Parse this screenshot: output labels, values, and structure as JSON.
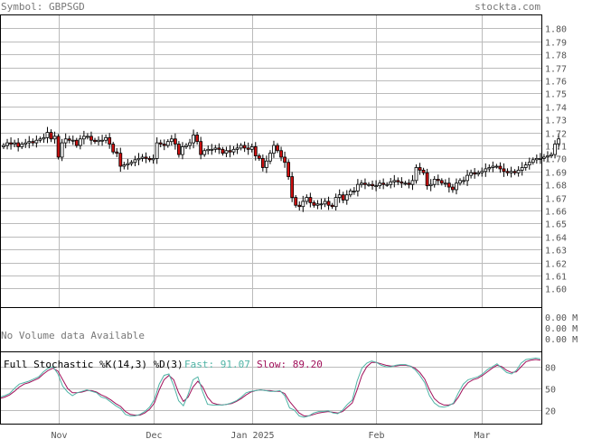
{
  "header": {
    "symbol_label": "Symbol: GBPSGD",
    "site": "stockta.com"
  },
  "volume_panel": {
    "message": "No Volume data Available",
    "axis_labels": [
      "0.00 M",
      "0.00 M",
      "0.00 M"
    ]
  },
  "stochastic_panel": {
    "title": "Full Stochastic %K(14,3) %D(3)",
    "fast_label": "Fast: 91.07",
    "slow_label": "Slow: 89.20",
    "fast_color": "#4fb3a5",
    "slow_color": "#a0105a",
    "ticks": [
      80,
      50,
      20
    ]
  },
  "colors": {
    "up": "#ffffff",
    "down": "#d01010",
    "grid": "#bbbbbb",
    "frame": "#000000"
  },
  "chart_data": [
    {
      "type": "candlestick",
      "title": "Symbol: GBPSGD",
      "ylim": [
        1.585,
        1.81
      ],
      "yticks": [
        1.6,
        1.61,
        1.62,
        1.63,
        1.64,
        1.65,
        1.66,
        1.67,
        1.68,
        1.69,
        1.7,
        1.71,
        1.72,
        1.73,
        1.74,
        1.75,
        1.76,
        1.77,
        1.78,
        1.79,
        1.8
      ],
      "ytick_labels": [
        "1.60",
        "1.61",
        "1.62",
        "1.63",
        "1.64",
        "1.65",
        "1.66",
        "1.67",
        "1.68",
        "1.69",
        "1.70",
        "1.71",
        "1.72",
        "1.73",
        "1.74",
        "1.75",
        "1.76",
        "1.77",
        "1.78",
        "1.79",
        "1.80"
      ],
      "x_labels": [
        "Nov",
        "Dec",
        "Jan 2025",
        "Feb",
        "Mar"
      ],
      "x_label_index": [
        15,
        41,
        68,
        102,
        131
      ],
      "grid": true,
      "close": [
        1.71,
        1.712,
        1.711,
        1.712,
        1.709,
        1.711,
        1.712,
        1.713,
        1.712,
        1.714,
        1.715,
        1.716,
        1.72,
        1.715,
        1.717,
        1.701,
        1.712,
        1.715,
        1.714,
        1.714,
        1.71,
        1.715,
        1.717,
        1.717,
        1.714,
        1.713,
        1.714,
        1.714,
        1.716,
        1.711,
        1.705,
        1.704,
        1.694,
        1.695,
        1.696,
        1.697,
        1.699,
        1.7,
        1.701,
        1.7,
        1.699,
        1.7,
        1.712,
        1.711,
        1.71,
        1.713,
        1.715,
        1.711,
        1.703,
        1.709,
        1.71,
        1.712,
        1.718,
        1.713,
        1.703,
        1.706,
        1.707,
        1.707,
        1.708,
        1.707,
        1.704,
        1.706,
        1.705,
        1.707,
        1.708,
        1.71,
        1.708,
        1.707,
        1.709,
        1.702,
        1.7,
        1.693,
        1.698,
        1.704,
        1.71,
        1.706,
        1.701,
        1.697,
        1.686,
        1.67,
        1.664,
        1.663,
        1.667,
        1.67,
        1.666,
        1.664,
        1.665,
        1.665,
        1.667,
        1.664,
        1.663,
        1.67,
        1.672,
        1.668,
        1.672,
        1.675,
        1.675,
        1.68,
        1.681,
        1.68,
        1.68,
        1.679,
        1.679,
        1.681,
        1.68,
        1.68,
        1.682,
        1.683,
        1.682,
        1.681,
        1.681,
        1.68,
        1.683,
        1.693,
        1.691,
        1.689,
        1.679,
        1.68,
        1.684,
        1.683,
        1.681,
        1.681,
        1.678,
        1.676,
        1.681,
        1.683,
        1.683,
        1.687,
        1.689,
        1.688,
        1.689,
        1.69,
        1.692,
        1.693,
        1.694,
        1.694,
        1.692,
        1.69,
        1.689,
        1.69,
        1.689,
        1.691,
        1.693,
        1.695,
        1.697,
        1.699,
        1.7,
        1.7,
        1.701,
        1.702,
        1.703,
        1.711,
        1.715
      ]
    },
    {
      "type": "line",
      "title": "Full Stochastic %K(14,3) %D(3)",
      "ylim": [
        0,
        100
      ],
      "series": [
        {
          "name": "Fast",
          "values": [
            38,
            40,
            43,
            50,
            56,
            58,
            60,
            63,
            66,
            73,
            78,
            80,
            70,
            53,
            45,
            40,
            44,
            46,
            48,
            46,
            44,
            38,
            36,
            31,
            26,
            22,
            14,
            12,
            12,
            14,
            18,
            24,
            35,
            56,
            68,
            70,
            54,
            33,
            26,
            42,
            62,
            66,
            45,
            28,
            27,
            27,
            27,
            28,
            30,
            33,
            38,
            44,
            46,
            47,
            48,
            47,
            46,
            46,
            47,
            40,
            23,
            20,
            12,
            10,
            12,
            16,
            18,
            18,
            19,
            16,
            15,
            20,
            28,
            34,
            60,
            78,
            85,
            88,
            86,
            82,
            80,
            80,
            82,
            83,
            83,
            81,
            76,
            68,
            58,
            40,
            30,
            25,
            24,
            26,
            30,
            44,
            56,
            62,
            64,
            66,
            70,
            76,
            80,
            84,
            78,
            72,
            70,
            75,
            85,
            90,
            91,
            92,
            91
          ]
        },
        {
          "name": "Slow",
          "values": [
            36,
            38,
            41,
            46,
            52,
            56,
            58,
            61,
            64,
            70,
            75,
            78,
            74,
            62,
            50,
            44,
            44,
            45,
            47,
            47,
            45,
            41,
            38,
            34,
            29,
            25,
            18,
            14,
            13,
            13,
            16,
            21,
            30,
            48,
            62,
            68,
            62,
            44,
            32,
            38,
            52,
            60,
            52,
            38,
            30,
            28,
            27,
            28,
            29,
            32,
            36,
            41,
            45,
            47,
            48,
            47,
            47,
            46,
            46,
            43,
            32,
            24,
            16,
            12,
            12,
            14,
            16,
            17,
            18,
            17,
            16,
            18,
            24,
            30,
            48,
            68,
            80,
            86,
            86,
            84,
            82,
            81,
            81,
            82,
            82,
            81,
            78,
            72,
            63,
            48,
            36,
            30,
            27,
            27,
            29,
            38,
            50,
            58,
            62,
            64,
            68,
            73,
            78,
            82,
            80,
            75,
            72,
            73,
            80,
            87,
            89,
            90,
            89
          ]
        }
      ]
    }
  ]
}
